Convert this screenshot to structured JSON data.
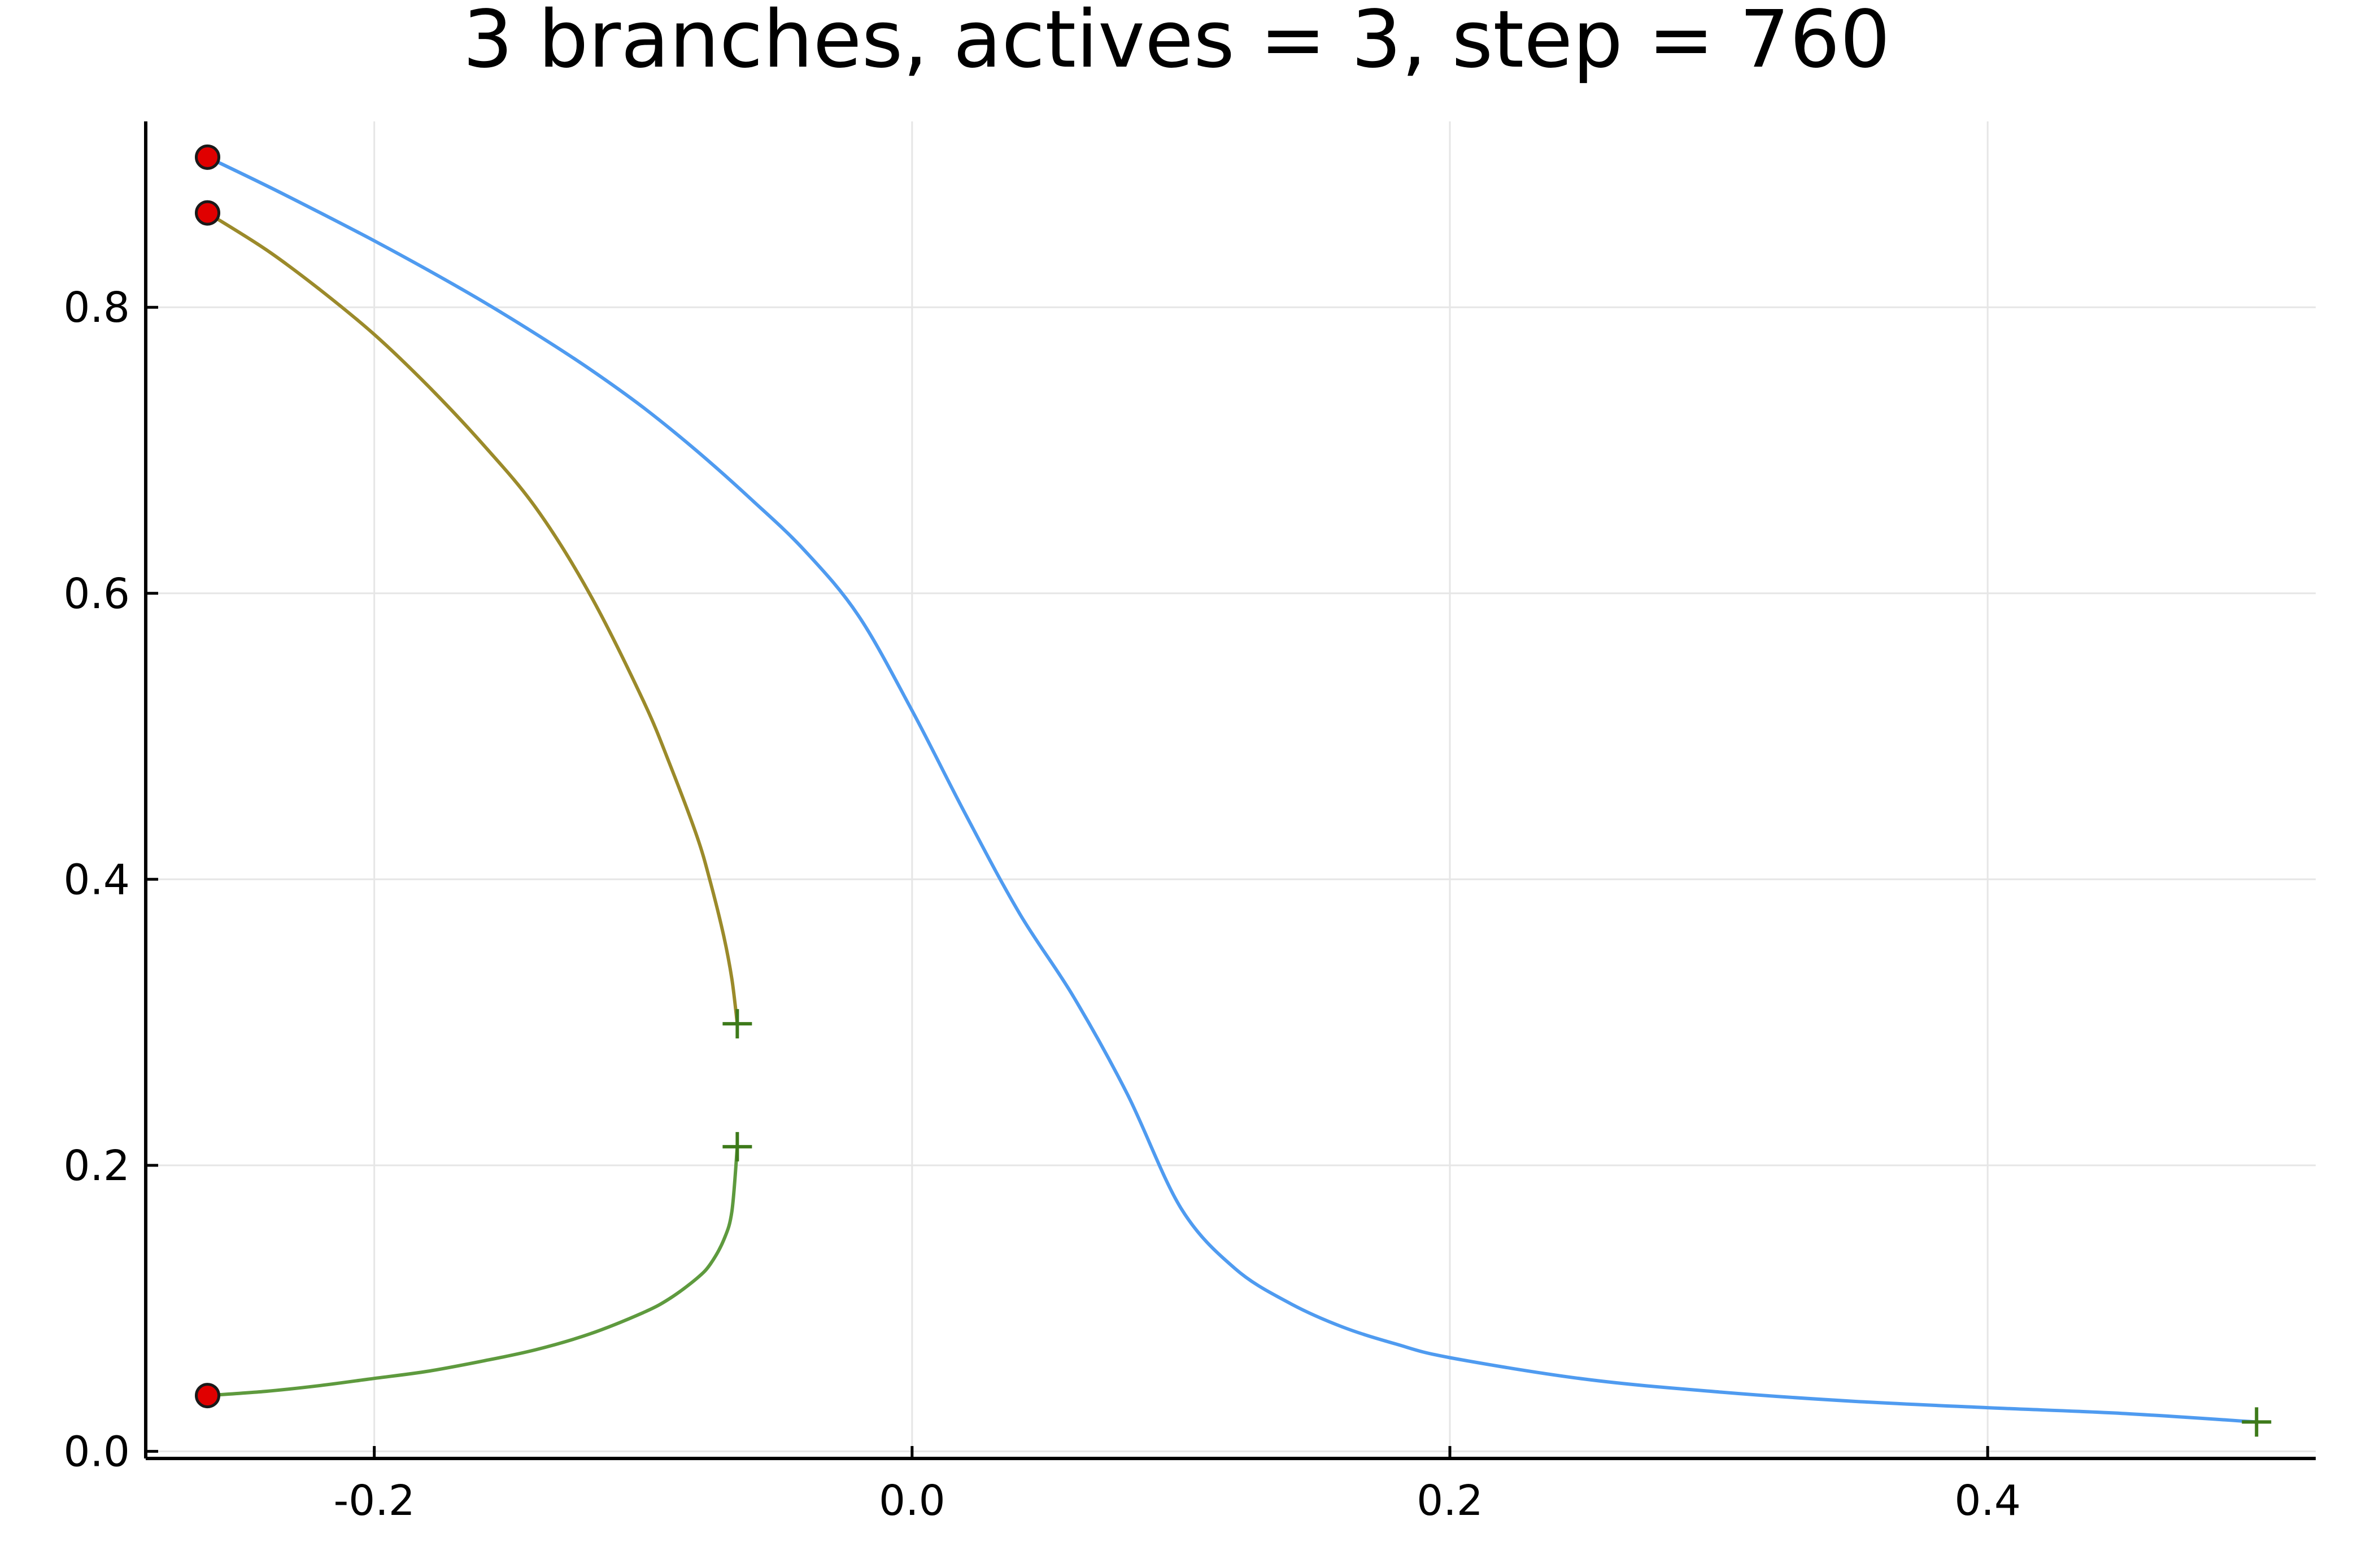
{
  "chart_data": {
    "type": "line",
    "title": "3 branches, actives = 3, step = 760",
    "xlabel": "",
    "ylabel": "",
    "xlim": [
      -0.285,
      0.522
    ],
    "ylim": [
      -0.005,
      0.93
    ],
    "grid": true,
    "legend": "none",
    "xticks": [
      {
        "value": -0.2,
        "label": "-0.2"
      },
      {
        "value": 0.0,
        "label": "0.0"
      },
      {
        "value": 0.2,
        "label": "0.2"
      },
      {
        "value": 0.4,
        "label": "0.4"
      }
    ],
    "yticks": [
      {
        "value": 0.0,
        "label": "0.0"
      },
      {
        "value": 0.2,
        "label": "0.2"
      },
      {
        "value": 0.4,
        "label": "0.4"
      },
      {
        "value": 0.6,
        "label": "0.6"
      },
      {
        "value": 0.8,
        "label": "0.8"
      }
    ],
    "series": [
      {
        "color": "#4f9bf0",
        "points": [
          [
            -0.262,
            0.905
          ],
          [
            -0.24,
            0.885
          ],
          [
            -0.22,
            0.866
          ],
          [
            -0.2,
            0.8465
          ],
          [
            -0.18,
            0.826
          ],
          [
            -0.16,
            0.8045
          ],
          [
            -0.14,
            0.7815
          ],
          [
            -0.12,
            0.757
          ],
          [
            -0.1,
            0.73
          ],
          [
            -0.08,
            0.6995
          ],
          [
            -0.06,
            0.666
          ],
          [
            -0.04,
            0.63
          ],
          [
            -0.02,
            0.5845
          ],
          [
            0.0,
            0.518
          ],
          [
            0.02,
            0.445
          ],
          [
            0.04,
            0.376
          ],
          [
            0.06,
            0.318
          ],
          [
            0.08,
            0.25
          ],
          [
            0.1,
            0.17
          ],
          [
            0.12,
            0.128
          ],
          [
            0.14,
            0.104
          ],
          [
            0.16,
            0.087
          ],
          [
            0.18,
            0.075
          ],
          [
            0.2,
            0.0655
          ],
          [
            0.25,
            0.0505
          ],
          [
            0.3,
            0.0415
          ],
          [
            0.35,
            0.035
          ],
          [
            0.4,
            0.0305
          ],
          [
            0.45,
            0.0265
          ],
          [
            0.5,
            0.0205
          ]
        ],
        "start_marker": "circle",
        "end_marker": "plus"
      },
      {
        "color": "#9b8a2a",
        "points": [
          [
            -0.262,
            0.866
          ],
          [
            -0.24,
            0.84
          ],
          [
            -0.22,
            0.812
          ],
          [
            -0.2,
            0.781
          ],
          [
            -0.18,
            0.745
          ],
          [
            -0.16,
            0.705
          ],
          [
            -0.14,
            0.66
          ],
          [
            -0.12,
            0.6
          ],
          [
            -0.1,
            0.525
          ],
          [
            -0.09,
            0.48
          ],
          [
            -0.08,
            0.43
          ],
          [
            -0.075,
            0.398
          ],
          [
            -0.07,
            0.36
          ],
          [
            -0.067,
            0.33
          ],
          [
            -0.065,
            0.299
          ]
        ],
        "start_marker": "circle",
        "end_marker": "plus"
      },
      {
        "color": "#5e9a3e",
        "points": [
          [
            -0.262,
            0.039
          ],
          [
            -0.24,
            0.042
          ],
          [
            -0.22,
            0.046
          ],
          [
            -0.2,
            0.051
          ],
          [
            -0.18,
            0.056
          ],
          [
            -0.16,
            0.063
          ],
          [
            -0.14,
            0.071
          ],
          [
            -0.12,
            0.082
          ],
          [
            -0.1,
            0.097
          ],
          [
            -0.09,
            0.107
          ],
          [
            -0.08,
            0.121
          ],
          [
            -0.075,
            0.131
          ],
          [
            -0.07,
            0.148
          ],
          [
            -0.067,
            0.168
          ],
          [
            -0.065,
            0.213
          ]
        ],
        "start_marker": "circle",
        "end_marker": "plus"
      }
    ]
  },
  "colors": {
    "start_marker_fill": "#e00000",
    "start_marker_stroke": "#1a1a1a",
    "end_marker": "#3d7a1a",
    "axis": "#000000",
    "grid": "#e6e6e6"
  }
}
